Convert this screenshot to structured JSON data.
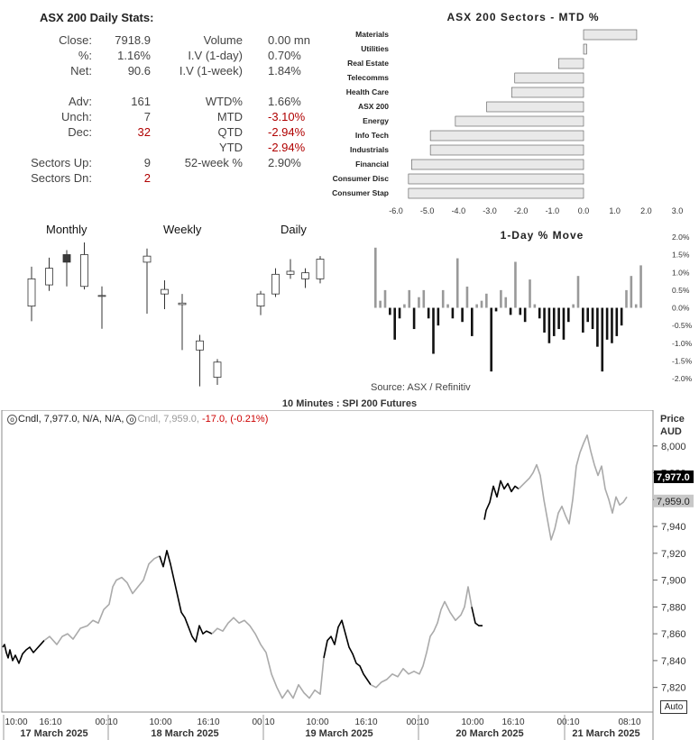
{
  "stats": {
    "title": "ASX 200 Daily Stats:",
    "left": [
      {
        "label": "Close:",
        "value": "7918.9"
      },
      {
        "label": "%:",
        "value": "1.16%"
      },
      {
        "label": "Net:",
        "value": "90.6"
      },
      {
        "label": "Adv:",
        "value": "161"
      },
      {
        "label": "Unch:",
        "value": "7"
      },
      {
        "label": "Dec:",
        "value": "32",
        "negative": true
      },
      {
        "label": "Sectors Up:",
        "value": "9"
      },
      {
        "label": "Sectors Dn:",
        "value": "2",
        "negative": true
      }
    ],
    "right": [
      {
        "label": "Volume",
        "value": "0.00 mn"
      },
      {
        "label": "I.V (1-day)",
        "value": "0.70%"
      },
      {
        "label": "I.V (1-week)",
        "value": "1.84%"
      },
      {
        "label": "WTD%",
        "value": "1.66%"
      },
      {
        "label": "MTD",
        "value": "-3.10%",
        "negative": true
      },
      {
        "label": "QTD",
        "value": "-2.94%",
        "negative": true
      },
      {
        "label": "YTD",
        "value": "-2.94%",
        "negative": true
      },
      {
        "label": "52-week %",
        "value": "2.90%"
      }
    ]
  },
  "candle_titles": {
    "monthly": "Monthly",
    "weekly": "Weekly",
    "daily": "Daily"
  },
  "source": "Source: ASX / Refinitiv",
  "colors": {
    "up_fill": "#ffffff",
    "down_fill": "#3a3a3a",
    "bar_positive": "#999999",
    "bar_negative": "#111111",
    "sector_bar": "#e9e9e9",
    "sector_edge": "#555555",
    "loss": "#cc0000",
    "futures_grey": "#aaaaaa",
    "futures_black": "#000000"
  },
  "chart_data": [
    {
      "type": "bar",
      "orientation": "horizontal",
      "title": "ASX 200 Sectors - MTD %",
      "categories": [
        "Materials",
        "Utilities",
        "Real Estate",
        "Telecomms",
        "Health Care",
        "ASX 200",
        "Energy",
        "Info Tech",
        "Industrials",
        "Financial",
        "Consumer Disc",
        "Consumer Stap"
      ],
      "values": [
        1.7,
        0.1,
        -0.8,
        -2.2,
        -2.3,
        -3.1,
        -4.1,
        -4.9,
        -4.9,
        -5.5,
        -5.6,
        -5.6
      ],
      "xlim": [
        -6.0,
        3.0
      ],
      "xticks": [
        "-6.0",
        "-5.0",
        "-4.0",
        "-3.0",
        "-2.0",
        "-1.0",
        "0.0",
        "1.0",
        "2.0",
        "3.0"
      ]
    },
    {
      "type": "bar",
      "title": "1-Day % Move",
      "values": [
        1.7,
        0.2,
        0.5,
        -0.2,
        -0.9,
        -0.3,
        0.1,
        0.5,
        -0.6,
        0.3,
        0.5,
        -0.3,
        -1.3,
        -0.5,
        0.5,
        0.1,
        -0.3,
        1.4,
        -0.4,
        0.6,
        -0.8,
        0.1,
        0.2,
        0.4,
        -1.8,
        -0.1,
        0.5,
        0.3,
        -0.2,
        1.3,
        -0.2,
        -0.4,
        0.8,
        0.1,
        -0.3,
        -0.7,
        -1.0,
        -0.8,
        -0.6,
        -0.9,
        -0.4,
        0.1,
        0.9,
        -0.7,
        -0.4,
        -0.6,
        -1.1,
        -1.8,
        -0.9,
        -1.0,
        -0.8,
        -0.5,
        0.5,
        0.9,
        0.1,
        1.2
      ],
      "ylim": [
        -2.0,
        2.0
      ],
      "yticks": [
        "2.0%",
        "1.5%",
        "1.0%",
        "0.5%",
        "0.0%",
        "-0.5%",
        "-1.0%",
        "-1.5%",
        "-2.0%"
      ]
    },
    {
      "type": "candlestick",
      "title": "Monthly",
      "ohlc": [
        [
          0.55,
          0.73,
          0.45,
          0.81
        ],
        [
          0.69,
          0.8,
          0.65,
          0.87
        ],
        [
          0.89,
          0.84,
          0.68,
          0.92
        ],
        [
          0.68,
          0.89,
          0.66,
          0.97
        ],
        [
          0.62,
          0.62,
          0.4,
          0.68
        ]
      ]
    },
    {
      "type": "candlestick",
      "title": "Weekly",
      "ohlc": [
        [
          0.84,
          0.88,
          0.5,
          0.93
        ],
        [
          0.63,
          0.66,
          0.53,
          0.72
        ],
        [
          0.56,
          0.57,
          0.26,
          0.63
        ],
        [
          0.26,
          0.32,
          0.02,
          0.36
        ],
        [
          0.08,
          0.18,
          0.03,
          0.2
        ]
      ]
    },
    {
      "type": "candlestick",
      "title": "Daily",
      "ohlc": [
        [
          0.55,
          0.63,
          0.49,
          0.65
        ],
        [
          0.63,
          0.76,
          0.61,
          0.8
        ],
        [
          0.76,
          0.78,
          0.73,
          0.86
        ],
        [
          0.73,
          0.77,
          0.67,
          0.8
        ],
        [
          0.73,
          0.86,
          0.7,
          0.88
        ]
      ]
    },
    {
      "type": "line",
      "title": "10 Minutes : SPI 200 Futures",
      "legend": {
        "primary": "Cndl, 7,977.0, N/A, N/A,",
        "secondary": "Cndl, 7,959.0,",
        "change": "-17.0, (-0.21%)"
      },
      "ylabel": "Price AUD",
      "ylim": [
        7805,
        8020
      ],
      "yticks": [
        "8,000",
        "7,980",
        "7,960",
        "7,940",
        "7,920",
        "7,900",
        "7,880",
        "7,860",
        "7,840",
        "7,820"
      ],
      "last_labels": {
        "primary": "7,977.0",
        "secondary": "7,959.0"
      },
      "x_time_labels": [
        "10:00",
        "16:10",
        "00:10",
        "10:00",
        "16:10",
        "00:10",
        "10:00",
        "16:10",
        "00:10",
        "10:00",
        "16:10",
        "00:10",
        "08:10"
      ],
      "x_date_labels": [
        "17 March 2025",
        "18 March 2025",
        "19 March 2025",
        "20 March 2025",
        "21 March 2025"
      ],
      "auto_button": "Auto",
      "segments": [
        {
          "color": "black",
          "points": [
            [
              0,
              7850
            ],
            [
              2,
              7852
            ],
            [
              4,
              7846
            ],
            [
              6,
              7842
            ],
            [
              8,
              7848
            ],
            [
              11,
              7840
            ],
            [
              14,
              7844
            ],
            [
              18,
              7838
            ],
            [
              22,
              7845
            ],
            [
              26,
              7848
            ],
            [
              30,
              7850
            ],
            [
              34,
              7846
            ],
            [
              38,
              7849
            ],
            [
              42,
              7852
            ],
            [
              46,
              7855
            ]
          ]
        },
        {
          "color": "grey",
          "points": [
            [
              46,
              7855
            ],
            [
              52,
              7858
            ],
            [
              60,
              7852
            ],
            [
              66,
              7858
            ],
            [
              72,
              7860
            ],
            [
              78,
              7856
            ],
            [
              86,
              7864
            ],
            [
              94,
              7866
            ],
            [
              100,
              7870
            ],
            [
              106,
              7868
            ],
            [
              112,
              7878
            ],
            [
              118,
              7882
            ],
            [
              122,
              7895
            ],
            [
              126,
              7900
            ],
            [
              132,
              7902
            ],
            [
              138,
              7898
            ],
            [
              144,
              7890
            ],
            [
              150,
              7895
            ],
            [
              156,
              7900
            ],
            [
              162,
              7912
            ],
            [
              168,
              7916
            ],
            [
              174,
              7918
            ]
          ]
        },
        {
          "color": "black",
          "points": [
            [
              174,
              7918
            ],
            [
              178,
              7910
            ],
            [
              182,
              7922
            ],
            [
              186,
              7912
            ],
            [
              190,
              7900
            ],
            [
              194,
              7888
            ],
            [
              198,
              7876
            ],
            [
              202,
              7872
            ],
            [
              206,
              7865
            ],
            [
              210,
              7858
            ],
            [
              214,
              7854
            ],
            [
              218,
              7866
            ],
            [
              222,
              7860
            ],
            [
              226,
              7862
            ],
            [
              232,
              7860
            ]
          ]
        },
        {
          "color": "grey",
          "points": [
            [
              232,
              7860
            ],
            [
              238,
              7864
            ],
            [
              244,
              7862
            ],
            [
              250,
              7868
            ],
            [
              256,
              7872
            ],
            [
              262,
              7868
            ],
            [
              268,
              7870
            ],
            [
              274,
              7866
            ],
            [
              280,
              7860
            ],
            [
              286,
              7852
            ],
            [
              292,
              7846
            ],
            [
              298,
              7830
            ],
            [
              304,
              7820
            ],
            [
              310,
              7812
            ],
            [
              316,
              7818
            ],
            [
              322,
              7812
            ],
            [
              328,
              7822
            ],
            [
              334,
              7816
            ],
            [
              340,
              7812
            ],
            [
              346,
              7818
            ],
            [
              352,
              7815
            ],
            [
              356,
              7842
            ]
          ]
        },
        {
          "color": "black",
          "points": [
            [
              356,
              7842
            ],
            [
              360,
              7855
            ],
            [
              364,
              7858
            ],
            [
              368,
              7852
            ],
            [
              372,
              7865
            ],
            [
              376,
              7870
            ],
            [
              380,
              7860
            ],
            [
              384,
              7850
            ],
            [
              388,
              7845
            ],
            [
              392,
              7838
            ],
            [
              396,
              7836
            ],
            [
              400,
              7830
            ],
            [
              404,
              7826
            ],
            [
              408,
              7822
            ]
          ]
        },
        {
          "color": "grey",
          "points": [
            [
              408,
              7822
            ],
            [
              414,
              7820
            ],
            [
              420,
              7824
            ],
            [
              426,
              7826
            ],
            [
              432,
              7830
            ],
            [
              438,
              7828
            ],
            [
              444,
              7834
            ],
            [
              450,
              7830
            ],
            [
              456,
              7832
            ],
            [
              462,
              7830
            ],
            [
              466,
              7836
            ],
            [
              470,
              7846
            ],
            [
              474,
              7858
            ],
            [
              478,
              7862
            ],
            [
              482,
              7868
            ],
            [
              486,
              7878
            ],
            [
              490,
              7884
            ],
            [
              496,
              7876
            ],
            [
              502,
              7870
            ],
            [
              508,
              7874
            ],
            [
              512,
              7880
            ],
            [
              516,
              7895
            ],
            [
              520,
              7880
            ]
          ]
        },
        {
          "color": "black",
          "points": [
            [
              520,
              7880
            ],
            [
              524,
              7868
            ],
            [
              528,
              7866
            ],
            [
              532,
              7866
            ]
          ]
        },
        {
          "color": "black",
          "points": [
            [
              534,
              7945
            ],
            [
              536,
              7952
            ],
            [
              540,
              7958
            ],
            [
              544,
              7970
            ],
            [
              548,
              7962
            ],
            [
              552,
              7974
            ],
            [
              556,
              7968
            ],
            [
              560,
              7972
            ],
            [
              564,
              7966
            ],
            [
              568,
              7970
            ],
            [
              572,
              7968
            ]
          ]
        },
        {
          "color": "grey",
          "points": [
            [
              572,
              7968
            ],
            [
              578,
              7972
            ],
            [
              584,
              7976
            ],
            [
              588,
              7980
            ],
            [
              592,
              7986
            ],
            [
              596,
              7978
            ],
            [
              600,
              7960
            ],
            [
              604,
              7945
            ],
            [
              608,
              7930
            ],
            [
              612,
              7938
            ],
            [
              616,
              7950
            ],
            [
              620,
              7955
            ],
            [
              624,
              7948
            ],
            [
              628,
              7942
            ],
            [
              632,
              7960
            ],
            [
              636,
              7985
            ],
            [
              640,
              7995
            ],
            [
              644,
              8002
            ],
            [
              648,
              8008
            ],
            [
              652,
              7996
            ],
            [
              656,
              7986
            ],
            [
              660,
              7978
            ],
            [
              664,
              7985
            ],
            [
              668,
              7968
            ],
            [
              672,
              7960
            ],
            [
              676,
              7950
            ],
            [
              680,
              7962
            ],
            [
              684,
              7956
            ],
            [
              688,
              7958
            ],
            [
              692,
              7962
            ]
          ]
        }
      ]
    }
  ]
}
